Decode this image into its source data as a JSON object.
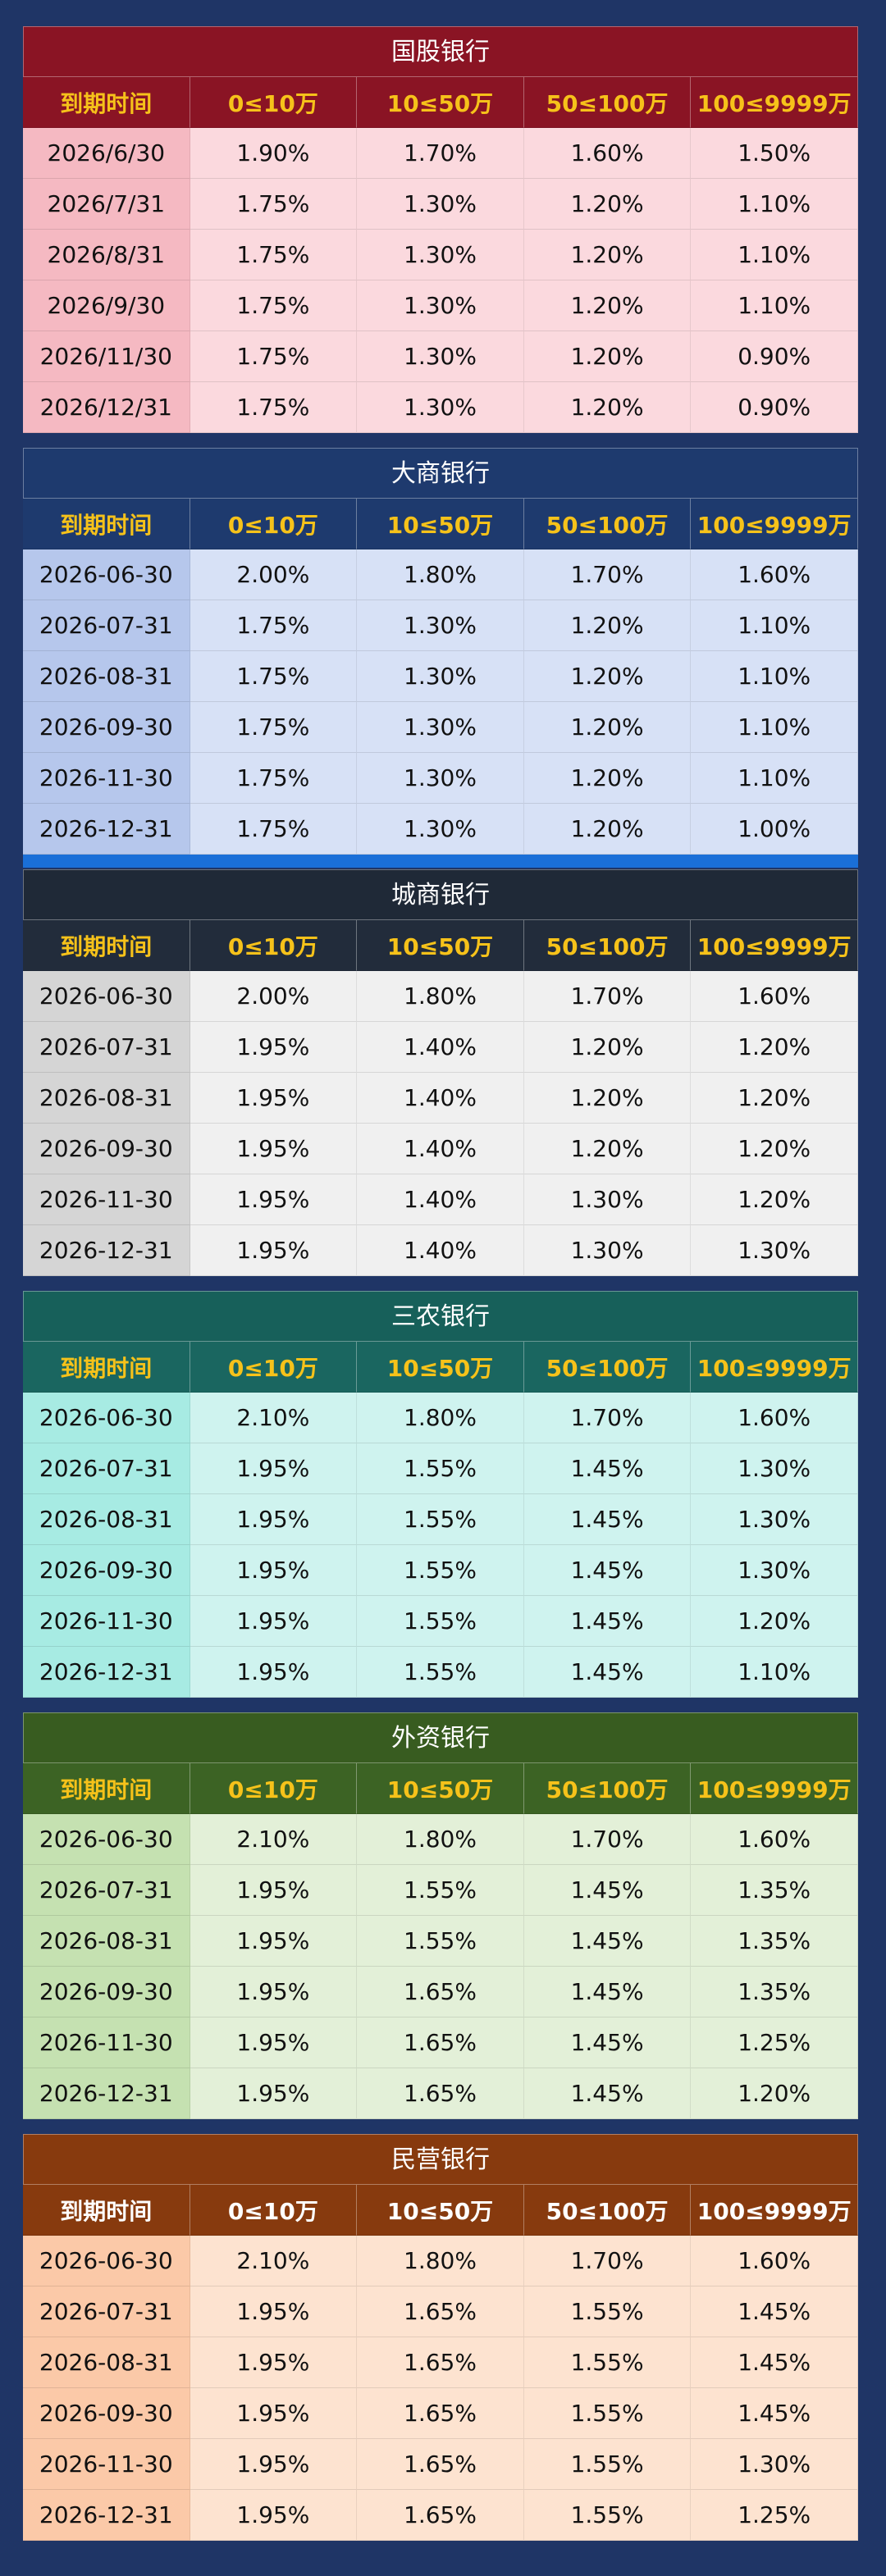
{
  "tables": [
    {
      "title": "国股银行",
      "headers": [
        "到期时间",
        "0≤10万",
        "10≤50万",
        "50≤100万",
        "100≤9999万"
      ],
      "rows": [
        [
          "2026/6/30",
          "1.90%",
          "1.70%",
          "1.60%",
          "1.50%"
        ],
        [
          "2026/7/31",
          "1.75%",
          "1.30%",
          "1.20%",
          "1.10%"
        ],
        [
          "2026/8/31",
          "1.75%",
          "1.30%",
          "1.20%",
          "1.10%"
        ],
        [
          "2026/9/30",
          "1.75%",
          "1.30%",
          "1.20%",
          "1.10%"
        ],
        [
          "2026/11/30",
          "1.75%",
          "1.30%",
          "1.20%",
          "0.90%"
        ],
        [
          "2026/12/31",
          "1.75%",
          "1.30%",
          "1.20%",
          "0.90%"
        ]
      ]
    },
    {
      "title": "大商银行",
      "headers": [
        "到期时间",
        "0≤10万",
        "10≤50万",
        "50≤100万",
        "100≤9999万"
      ],
      "rows": [
        [
          "2026-06-30",
          "2.00%",
          "1.80%",
          "1.70%",
          "1.60%"
        ],
        [
          "2026-07-31",
          "1.75%",
          "1.30%",
          "1.20%",
          "1.10%"
        ],
        [
          "2026-08-31",
          "1.75%",
          "1.30%",
          "1.20%",
          "1.10%"
        ],
        [
          "2026-09-30",
          "1.75%",
          "1.30%",
          "1.20%",
          "1.10%"
        ],
        [
          "2026-11-30",
          "1.75%",
          "1.30%",
          "1.20%",
          "1.10%"
        ],
        [
          "2026-12-31",
          "1.75%",
          "1.30%",
          "1.20%",
          "1.00%"
        ]
      ]
    },
    {
      "title": "城商银行",
      "headers": [
        "到期时间",
        "0≤10万",
        "10≤50万",
        "50≤100万",
        "100≤9999万"
      ],
      "rows": [
        [
          "2026-06-30",
          "2.00%",
          "1.80%",
          "1.70%",
          "1.60%"
        ],
        [
          "2026-07-31",
          "1.95%",
          "1.40%",
          "1.20%",
          "1.20%"
        ],
        [
          "2026-08-31",
          "1.95%",
          "1.40%",
          "1.20%",
          "1.20%"
        ],
        [
          "2026-09-30",
          "1.95%",
          "1.40%",
          "1.20%",
          "1.20%"
        ],
        [
          "2026-11-30",
          "1.95%",
          "1.40%",
          "1.30%",
          "1.20%"
        ],
        [
          "2026-12-31",
          "1.95%",
          "1.40%",
          "1.30%",
          "1.30%"
        ]
      ]
    },
    {
      "title": "三农银行",
      "headers": [
        "到期时间",
        "0≤10万",
        "10≤50万",
        "50≤100万",
        "100≤9999万"
      ],
      "rows": [
        [
          "2026-06-30",
          "2.10%",
          "1.80%",
          "1.70%",
          "1.60%"
        ],
        [
          "2026-07-31",
          "1.95%",
          "1.55%",
          "1.45%",
          "1.30%"
        ],
        [
          "2026-08-31",
          "1.95%",
          "1.55%",
          "1.45%",
          "1.30%"
        ],
        [
          "2026-09-30",
          "1.95%",
          "1.55%",
          "1.45%",
          "1.30%"
        ],
        [
          "2026-11-30",
          "1.95%",
          "1.55%",
          "1.45%",
          "1.20%"
        ],
        [
          "2026-12-31",
          "1.95%",
          "1.55%",
          "1.45%",
          "1.10%"
        ]
      ]
    },
    {
      "title": "外资银行",
      "headers": [
        "到期时间",
        "0≤10万",
        "10≤50万",
        "50≤100万",
        "100≤9999万"
      ],
      "rows": [
        [
          "2026-06-30",
          "2.10%",
          "1.80%",
          "1.70%",
          "1.60%"
        ],
        [
          "2026-07-31",
          "1.95%",
          "1.55%",
          "1.45%",
          "1.35%"
        ],
        [
          "2026-08-31",
          "1.95%",
          "1.55%",
          "1.45%",
          "1.35%"
        ],
        [
          "2026-09-30",
          "1.95%",
          "1.65%",
          "1.45%",
          "1.35%"
        ],
        [
          "2026-11-30",
          "1.95%",
          "1.65%",
          "1.45%",
          "1.25%"
        ],
        [
          "2026-12-31",
          "1.95%",
          "1.65%",
          "1.45%",
          "1.20%"
        ]
      ]
    },
    {
      "title": "民营银行",
      "headers": [
        "到期时间",
        "0≤10万",
        "10≤50万",
        "50≤100万",
        "100≤9999万"
      ],
      "rows": [
        [
          "2026-06-30",
          "2.10%",
          "1.80%",
          "1.70%",
          "1.60%"
        ],
        [
          "2026-07-31",
          "1.95%",
          "1.65%",
          "1.55%",
          "1.45%"
        ],
        [
          "2026-08-31",
          "1.95%",
          "1.65%",
          "1.55%",
          "1.45%"
        ],
        [
          "2026-09-30",
          "1.95%",
          "1.65%",
          "1.55%",
          "1.45%"
        ],
        [
          "2026-11-30",
          "1.95%",
          "1.65%",
          "1.55%",
          "1.30%"
        ],
        [
          "2026-12-31",
          "1.95%",
          "1.65%",
          "1.55%",
          "1.25%"
        ]
      ]
    }
  ]
}
